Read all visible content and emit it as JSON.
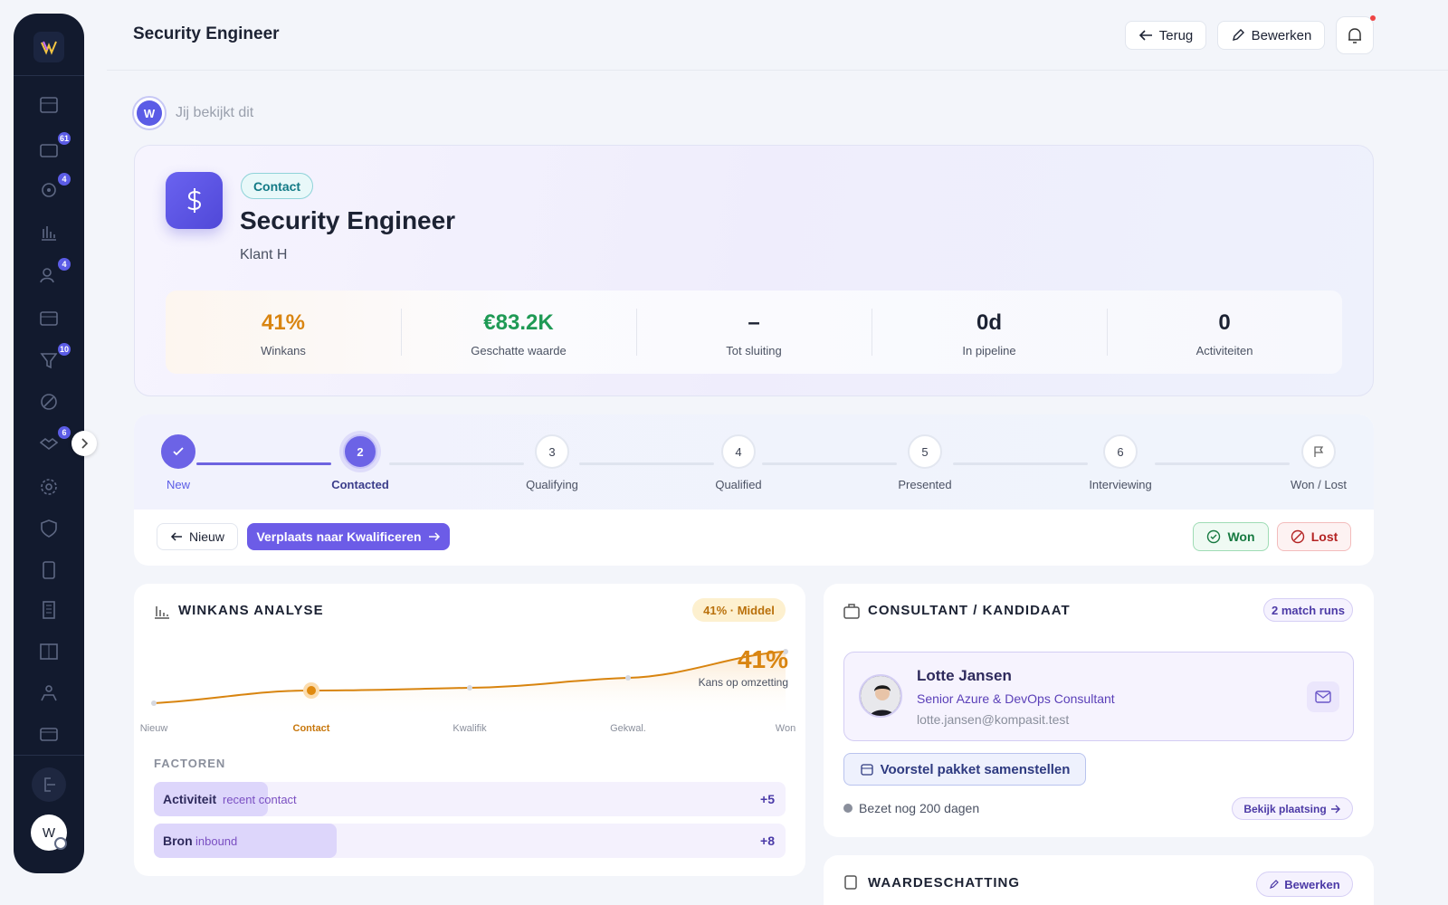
{
  "sidebar": {
    "badges": [
      "61",
      "4",
      "4",
      "10",
      "6"
    ],
    "avatar": "W"
  },
  "header": {
    "title": "Security Engineer",
    "back": "Terug",
    "edit": "Bewerken"
  },
  "viewer": {
    "avatar": "W",
    "text": "Jij bekijkt dit"
  },
  "hero": {
    "tag": "Contact",
    "title": "Security Engineer",
    "client": "Klant H",
    "stats": [
      {
        "value": "41%",
        "label": "Winkans"
      },
      {
        "value": "€83.2K",
        "label": "Geschatte waarde"
      },
      {
        "value": "–",
        "label": "Tot sluiting"
      },
      {
        "value": "0d",
        "label": "In pipeline"
      },
      {
        "value": "0",
        "label": "Activiteiten"
      }
    ]
  },
  "stepper": {
    "steps": [
      {
        "label": "New"
      },
      {
        "number": "2",
        "label": "Contacted"
      },
      {
        "number": "3",
        "label": "Qualifying"
      },
      {
        "number": "4",
        "label": "Qualified"
      },
      {
        "number": "5",
        "label": "Presented"
      },
      {
        "number": "6",
        "label": "Interviewing"
      },
      {
        "label": "Won / Lost"
      }
    ]
  },
  "actions": {
    "prev": "Nieuw",
    "next": "Verplaats naar Kwalificeren",
    "won": "Won",
    "lost": "Lost"
  },
  "winkans": {
    "title": "WINKANS ANALYSE",
    "badge": "41% · Middel",
    "big": "41%",
    "caption": "Kans op omzetting",
    "axis": [
      "Nieuw",
      "Contact",
      "Kwalifik",
      "Gekwal.",
      "Won"
    ],
    "factors_title": "FACTOREN",
    "factors": [
      {
        "name": "Activiteit",
        "detail": "recent contact",
        "score": "+5"
      },
      {
        "name": "Bron",
        "detail": "inbound",
        "score": "+8"
      }
    ]
  },
  "consultant": {
    "title": "CONSULTANT / KANDIDAAT",
    "badge": "2 match runs",
    "name": "Lotte Jansen",
    "role": "Senior Azure & DevOps Consultant",
    "email": "lotte.jansen@kompasit.test",
    "action": "Voorstel pakket samenstellen",
    "status": "Bezet nog 200 dagen",
    "link": "Bekijk plaatsing"
  },
  "valuation": {
    "title": "WAARDESCHATTING",
    "edit": "Bewerken"
  }
}
